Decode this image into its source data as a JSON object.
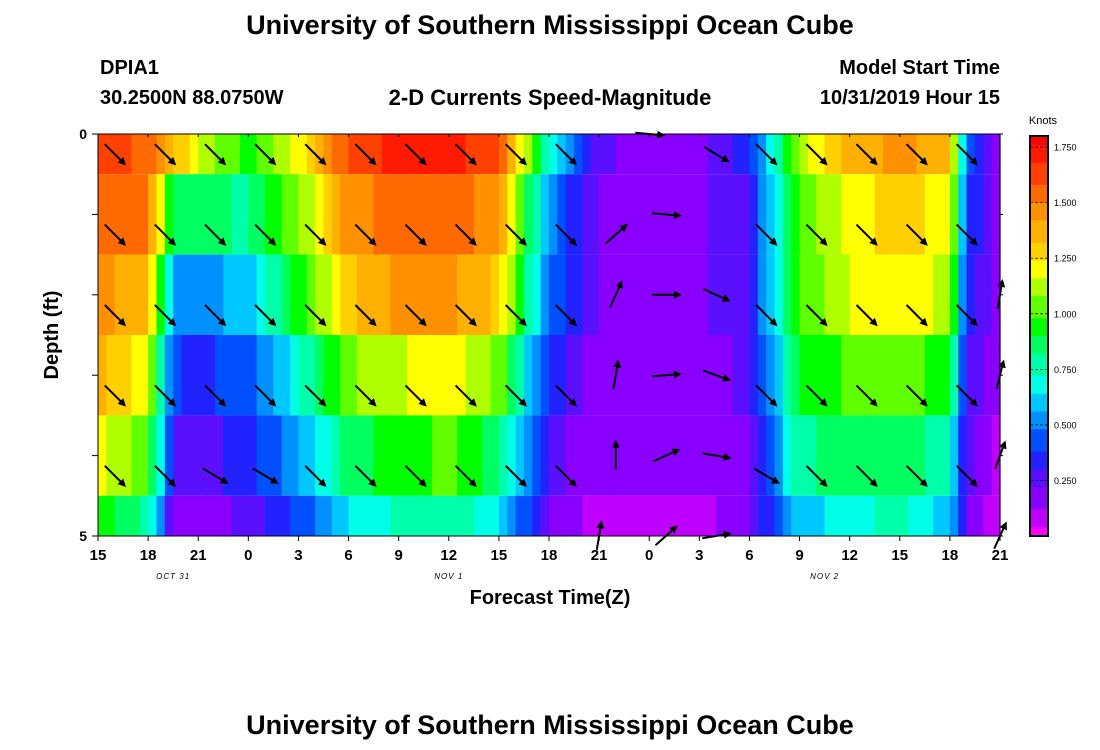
{
  "page": {
    "title_top": "University of Southern Mississippi Ocean Cube",
    "title_bottom": "University of Southern Mississippi Ocean Cube",
    "station_id": "DPIA1",
    "station_coords": "30.2500N 88.0750W",
    "plot_title": "2-D Currents Speed-Magnitude",
    "model_start_label": "Model Start Time",
    "model_start_value": "10/31/2019 Hour 15"
  },
  "colors": {
    "arrow": "#000000",
    "ramp": [
      "#ff00ff",
      "#c000ff",
      "#8a00ff",
      "#5a10ff",
      "#2222ff",
      "#0050ff",
      "#0090ff",
      "#00c8ff",
      "#00ffe6",
      "#00ffaa",
      "#00ff60",
      "#00ff00",
      "#60ff00",
      "#b0ff00",
      "#ffff00",
      "#ffd000",
      "#ffb000",
      "#ff9000",
      "#ff6a00",
      "#ff4000",
      "#ff1a00",
      "#ff0000"
    ]
  },
  "chart_data": {
    "type": "heatmap",
    "title": "2-D Currents Speed-Magnitude",
    "xlabel": "Forecast Time(Z)",
    "ylabel": "Depth (ft)",
    "x_hours": [
      0,
      54
    ],
    "ylim": [
      0,
      5
    ],
    "y_ticks": [
      0,
      1,
      2,
      3,
      4,
      5
    ],
    "y_tick_labels": [
      "0",
      "",
      "",
      "",
      "",
      "5"
    ],
    "x_ticks": [
      0,
      3,
      6,
      9,
      12,
      15,
      18,
      21,
      24,
      27,
      30,
      33,
      36,
      39,
      42,
      45,
      48,
      51,
      54
    ],
    "x_tick_labels": [
      "15",
      "18",
      "21",
      "0",
      "3",
      "6",
      "9",
      "12",
      "15",
      "18",
      "21",
      "0",
      "3",
      "6",
      "9",
      "12",
      "15",
      "18",
      "21"
    ],
    "date_labels": [
      {
        "hour": 4.5,
        "text": "OCT 31"
      },
      {
        "hour": 21,
        "text": "NOV 1"
      },
      {
        "hour": 43.5,
        "text": "NOV 2"
      }
    ],
    "colorbar": {
      "label": "Knots",
      "range": [
        0.0,
        1.8
      ],
      "ticks": [
        1.75,
        1.5,
        1.25,
        1.0,
        0.75,
        0.5,
        0.25
      ],
      "tick_labels": [
        "1.750",
        "1.500",
        "1.250",
        "1.000",
        "0.750",
        "0.500",
        "0.250"
      ]
    },
    "speed_layers": [
      {
        "depth_range": [
          0,
          0.5
        ],
        "hours": [
          0,
          3,
          6,
          9,
          12,
          15,
          18,
          21,
          24,
          27,
          30,
          33,
          36,
          39,
          42,
          45,
          48,
          51,
          52,
          54
        ],
        "values": [
          1.65,
          1.55,
          1.15,
          0.95,
          1.2,
          1.6,
          1.7,
          1.7,
          1.6,
          0.7,
          0.25,
          0.15,
          0.2,
          0.35,
          1.1,
          1.35,
          1.45,
          1.35,
          0.5,
          0.15
        ]
      },
      {
        "depth_range": [
          0.5,
          1.5
        ],
        "hours": [
          0,
          3,
          4.5,
          6,
          9,
          12,
          15,
          18,
          21,
          24,
          27,
          30,
          33,
          36,
          39,
          42,
          45,
          48,
          51,
          52,
          54
        ],
        "values": [
          1.55,
          1.5,
          0.85,
          0.85,
          0.8,
          1.05,
          1.45,
          1.55,
          1.55,
          1.45,
          0.5,
          0.2,
          0.15,
          0.2,
          0.3,
          1.0,
          1.2,
          1.3,
          1.2,
          0.4,
          0.15
        ]
      },
      {
        "depth_range": [
          1.5,
          2.5
        ],
        "hours": [
          0,
          3,
          4.5,
          6,
          9,
          12,
          15,
          18,
          21,
          24,
          27,
          30,
          33,
          36,
          39,
          42,
          45,
          48,
          51,
          52,
          54
        ],
        "values": [
          1.45,
          1.35,
          0.55,
          0.5,
          0.6,
          0.95,
          1.3,
          1.45,
          1.45,
          1.3,
          0.45,
          0.2,
          0.15,
          0.2,
          0.3,
          1.0,
          1.15,
          1.25,
          1.1,
          0.35,
          0.15
        ]
      },
      {
        "depth_range": [
          2.5,
          3.5
        ],
        "hours": [
          0,
          3,
          4.5,
          6,
          9,
          12,
          15,
          18,
          21,
          24,
          27,
          30,
          33,
          36,
          39,
          42,
          45,
          48,
          51,
          52,
          54
        ],
        "values": [
          1.35,
          1.2,
          0.4,
          0.35,
          0.45,
          0.7,
          1.05,
          1.15,
          1.2,
          1.05,
          0.35,
          0.15,
          0.15,
          0.15,
          0.25,
          0.9,
          1.0,
          1.05,
          0.9,
          0.3,
          0.15
        ]
      },
      {
        "depth_range": [
          3.5,
          4.5
        ],
        "hours": [
          0,
          3,
          4.5,
          6,
          9,
          12,
          15,
          18,
          21,
          24,
          27,
          30,
          33,
          36,
          39,
          42,
          45,
          48,
          51,
          52,
          54
        ],
        "values": [
          1.2,
          1.0,
          0.3,
          0.25,
          0.35,
          0.55,
          0.85,
          0.95,
          1.0,
          0.85,
          0.25,
          0.15,
          0.15,
          0.15,
          0.2,
          0.8,
          0.85,
          0.9,
          0.75,
          0.25,
          0.1
        ]
      },
      {
        "depth_range": [
          4.5,
          5
        ],
        "hours": [
          0,
          3,
          4.5,
          6,
          9,
          12,
          15,
          18,
          21,
          24,
          27,
          30,
          33,
          36,
          39,
          42,
          45,
          48,
          51,
          52,
          54
        ],
        "values": [
          0.95,
          0.8,
          0.2,
          0.15,
          0.25,
          0.4,
          0.65,
          0.75,
          0.8,
          0.65,
          0.2,
          0.1,
          0.08,
          0.1,
          0.2,
          0.6,
          0.7,
          0.75,
          0.6,
          0.2,
          0.08
        ]
      }
    ],
    "vector_depths": [
      0.5,
      1.5,
      2.5,
      3.5,
      4.5,
      5.0
    ],
    "vector_hours": [
      1,
      4,
      7,
      10,
      13,
      16,
      19,
      22,
      25,
      28,
      31,
      34,
      37,
      40,
      43,
      46,
      49,
      52,
      54
    ],
    "vectors": [
      {
        "depth": 0.25,
        "hour": 1,
        "u": 1,
        "v": -1
      },
      {
        "depth": 0.25,
        "hour": 4,
        "u": 1,
        "v": -1
      },
      {
        "depth": 0.25,
        "hour": 7,
        "u": 1,
        "v": -1
      },
      {
        "depth": 0.25,
        "hour": 10,
        "u": 1,
        "v": -1
      },
      {
        "depth": 0.25,
        "hour": 13,
        "u": 1,
        "v": -1
      },
      {
        "depth": 0.25,
        "hour": 16,
        "u": 1,
        "v": -1
      },
      {
        "depth": 0.25,
        "hour": 19,
        "u": 1,
        "v": -1
      },
      {
        "depth": 0.25,
        "hour": 22,
        "u": 1,
        "v": -1
      },
      {
        "depth": 0.25,
        "hour": 25,
        "u": 1,
        "v": -1
      },
      {
        "depth": 0.25,
        "hour": 28,
        "u": 1,
        "v": -1
      },
      {
        "depth": 0.0,
        "hour": 33,
        "u": 1.2,
        "v": -0.1
      },
      {
        "depth": 0.25,
        "hour": 37,
        "u": 1,
        "v": -0.6
      },
      {
        "depth": 0.25,
        "hour": 40,
        "u": 1,
        "v": -1
      },
      {
        "depth": 0.25,
        "hour": 43,
        "u": 1,
        "v": -1
      },
      {
        "depth": 0.25,
        "hour": 46,
        "u": 1,
        "v": -1
      },
      {
        "depth": 0.25,
        "hour": 49,
        "u": 1,
        "v": -1
      },
      {
        "depth": 0.25,
        "hour": 52,
        "u": 1,
        "v": -1
      },
      {
        "depth": 1.25,
        "hour": 1,
        "u": 1,
        "v": -1
      },
      {
        "depth": 1.25,
        "hour": 4,
        "u": 1,
        "v": -1
      },
      {
        "depth": 1.25,
        "hour": 7,
        "u": 1,
        "v": -1
      },
      {
        "depth": 1.25,
        "hour": 10,
        "u": 1,
        "v": -1
      },
      {
        "depth": 1.25,
        "hour": 13,
        "u": 1,
        "v": -1
      },
      {
        "depth": 1.25,
        "hour": 16,
        "u": 1,
        "v": -1
      },
      {
        "depth": 1.25,
        "hour": 19,
        "u": 1,
        "v": -1
      },
      {
        "depth": 1.25,
        "hour": 22,
        "u": 1,
        "v": -1
      },
      {
        "depth": 1.25,
        "hour": 25,
        "u": 1,
        "v": -1
      },
      {
        "depth": 1.25,
        "hour": 28,
        "u": 1,
        "v": -1
      },
      {
        "depth": 1.25,
        "hour": 31,
        "u": 0.9,
        "v": 0.8
      },
      {
        "depth": 1.0,
        "hour": 34,
        "u": 1.2,
        "v": -0.1
      },
      {
        "depth": 1.25,
        "hour": 40,
        "u": 1,
        "v": -1
      },
      {
        "depth": 1.25,
        "hour": 43,
        "u": 1,
        "v": -1
      },
      {
        "depth": 1.25,
        "hour": 46,
        "u": 1,
        "v": -1
      },
      {
        "depth": 1.25,
        "hour": 49,
        "u": 1,
        "v": -1
      },
      {
        "depth": 1.25,
        "hour": 52,
        "u": 1,
        "v": -1
      },
      {
        "depth": 2.25,
        "hour": 1,
        "u": 1,
        "v": -1
      },
      {
        "depth": 2.25,
        "hour": 4,
        "u": 1,
        "v": -1
      },
      {
        "depth": 2.25,
        "hour": 7,
        "u": 1,
        "v": -1
      },
      {
        "depth": 2.25,
        "hour": 10,
        "u": 1,
        "v": -1
      },
      {
        "depth": 2.25,
        "hour": 13,
        "u": 1,
        "v": -1
      },
      {
        "depth": 2.25,
        "hour": 16,
        "u": 1,
        "v": -1
      },
      {
        "depth": 2.25,
        "hour": 19,
        "u": 1,
        "v": -1
      },
      {
        "depth": 2.25,
        "hour": 22,
        "u": 1,
        "v": -1
      },
      {
        "depth": 2.25,
        "hour": 25,
        "u": 1,
        "v": -1
      },
      {
        "depth": 2.25,
        "hour": 28,
        "u": 1,
        "v": -1
      },
      {
        "depth": 2.0,
        "hour": 31,
        "u": 0.5,
        "v": 1.1
      },
      {
        "depth": 2.0,
        "hour": 34,
        "u": 1.2,
        "v": 0.0
      },
      {
        "depth": 2.0,
        "hour": 37,
        "u": 1.1,
        "v": -0.5
      },
      {
        "depth": 2.25,
        "hour": 40,
        "u": 1,
        "v": -1
      },
      {
        "depth": 2.25,
        "hour": 43,
        "u": 1,
        "v": -1
      },
      {
        "depth": 2.25,
        "hour": 46,
        "u": 1,
        "v": -1
      },
      {
        "depth": 2.25,
        "hour": 49,
        "u": 1,
        "v": -1
      },
      {
        "depth": 2.25,
        "hour": 52,
        "u": 1,
        "v": -1
      },
      {
        "depth": 2.0,
        "hour": 54,
        "u": 0.2,
        "v": 1.2
      },
      {
        "depth": 3.25,
        "hour": 1,
        "u": 1,
        "v": -1
      },
      {
        "depth": 3.25,
        "hour": 4,
        "u": 1,
        "v": -1
      },
      {
        "depth": 3.25,
        "hour": 7,
        "u": 1,
        "v": -1
      },
      {
        "depth": 3.25,
        "hour": 10,
        "u": 1,
        "v": -1
      },
      {
        "depth": 3.25,
        "hour": 13,
        "u": 1,
        "v": -1
      },
      {
        "depth": 3.25,
        "hour": 16,
        "u": 1,
        "v": -1
      },
      {
        "depth": 3.25,
        "hour": 19,
        "u": 1,
        "v": -1
      },
      {
        "depth": 3.25,
        "hour": 22,
        "u": 1,
        "v": -1
      },
      {
        "depth": 3.25,
        "hour": 25,
        "u": 1,
        "v": -1
      },
      {
        "depth": 3.25,
        "hour": 28,
        "u": 1,
        "v": -1
      },
      {
        "depth": 3.0,
        "hour": 31,
        "u": 0.2,
        "v": 1.2
      },
      {
        "depth": 3.0,
        "hour": 34,
        "u": 1.2,
        "v": 0.1
      },
      {
        "depth": 3.0,
        "hour": 37,
        "u": 1.1,
        "v": -0.4
      },
      {
        "depth": 3.25,
        "hour": 40,
        "u": 1,
        "v": -1
      },
      {
        "depth": 3.25,
        "hour": 43,
        "u": 1,
        "v": -1
      },
      {
        "depth": 3.25,
        "hour": 46,
        "u": 1,
        "v": -1
      },
      {
        "depth": 3.25,
        "hour": 49,
        "u": 1,
        "v": -1
      },
      {
        "depth": 3.25,
        "hour": 52,
        "u": 1,
        "v": -1
      },
      {
        "depth": 3.0,
        "hour": 54,
        "u": 0.3,
        "v": 1.2
      },
      {
        "depth": 4.25,
        "hour": 1,
        "u": 1,
        "v": -1
      },
      {
        "depth": 4.25,
        "hour": 4,
        "u": 1,
        "v": -1
      },
      {
        "depth": 4.25,
        "hour": 7,
        "u": 1,
        "v": -0.6
      },
      {
        "depth": 4.25,
        "hour": 10,
        "u": 1,
        "v": -0.6
      },
      {
        "depth": 4.25,
        "hour": 13,
        "u": 1,
        "v": -1
      },
      {
        "depth": 4.25,
        "hour": 16,
        "u": 1,
        "v": -1
      },
      {
        "depth": 4.25,
        "hour": 19,
        "u": 1,
        "v": -1
      },
      {
        "depth": 4.25,
        "hour": 22,
        "u": 1,
        "v": -1
      },
      {
        "depth": 4.25,
        "hour": 25,
        "u": 1,
        "v": -1
      },
      {
        "depth": 4.25,
        "hour": 28,
        "u": 1,
        "v": -1
      },
      {
        "depth": 4.0,
        "hour": 31,
        "u": 0.0,
        "v": 1.2
      },
      {
        "depth": 4.0,
        "hour": 34,
        "u": 1.1,
        "v": 0.5
      },
      {
        "depth": 4.0,
        "hour": 37,
        "u": 1.2,
        "v": -0.2
      },
      {
        "depth": 4.25,
        "hour": 40,
        "u": 1,
        "v": -0.6
      },
      {
        "depth": 4.25,
        "hour": 43,
        "u": 1,
        "v": -1
      },
      {
        "depth": 4.25,
        "hour": 46,
        "u": 1,
        "v": -1
      },
      {
        "depth": 4.25,
        "hour": 49,
        "u": 1,
        "v": -1
      },
      {
        "depth": 4.25,
        "hour": 52,
        "u": 1,
        "v": -1
      },
      {
        "depth": 4.0,
        "hour": 54,
        "u": 0.4,
        "v": 1.1
      },
      {
        "depth": 5.0,
        "hour": 30,
        "u": 0.2,
        "v": 1.2
      },
      {
        "depth": 5.0,
        "hour": 34,
        "u": 0.9,
        "v": 0.8
      },
      {
        "depth": 5.0,
        "hour": 37,
        "u": 1.2,
        "v": 0.2
      },
      {
        "depth": 5.0,
        "hour": 54,
        "u": 0.5,
        "v": 1.1
      }
    ]
  }
}
